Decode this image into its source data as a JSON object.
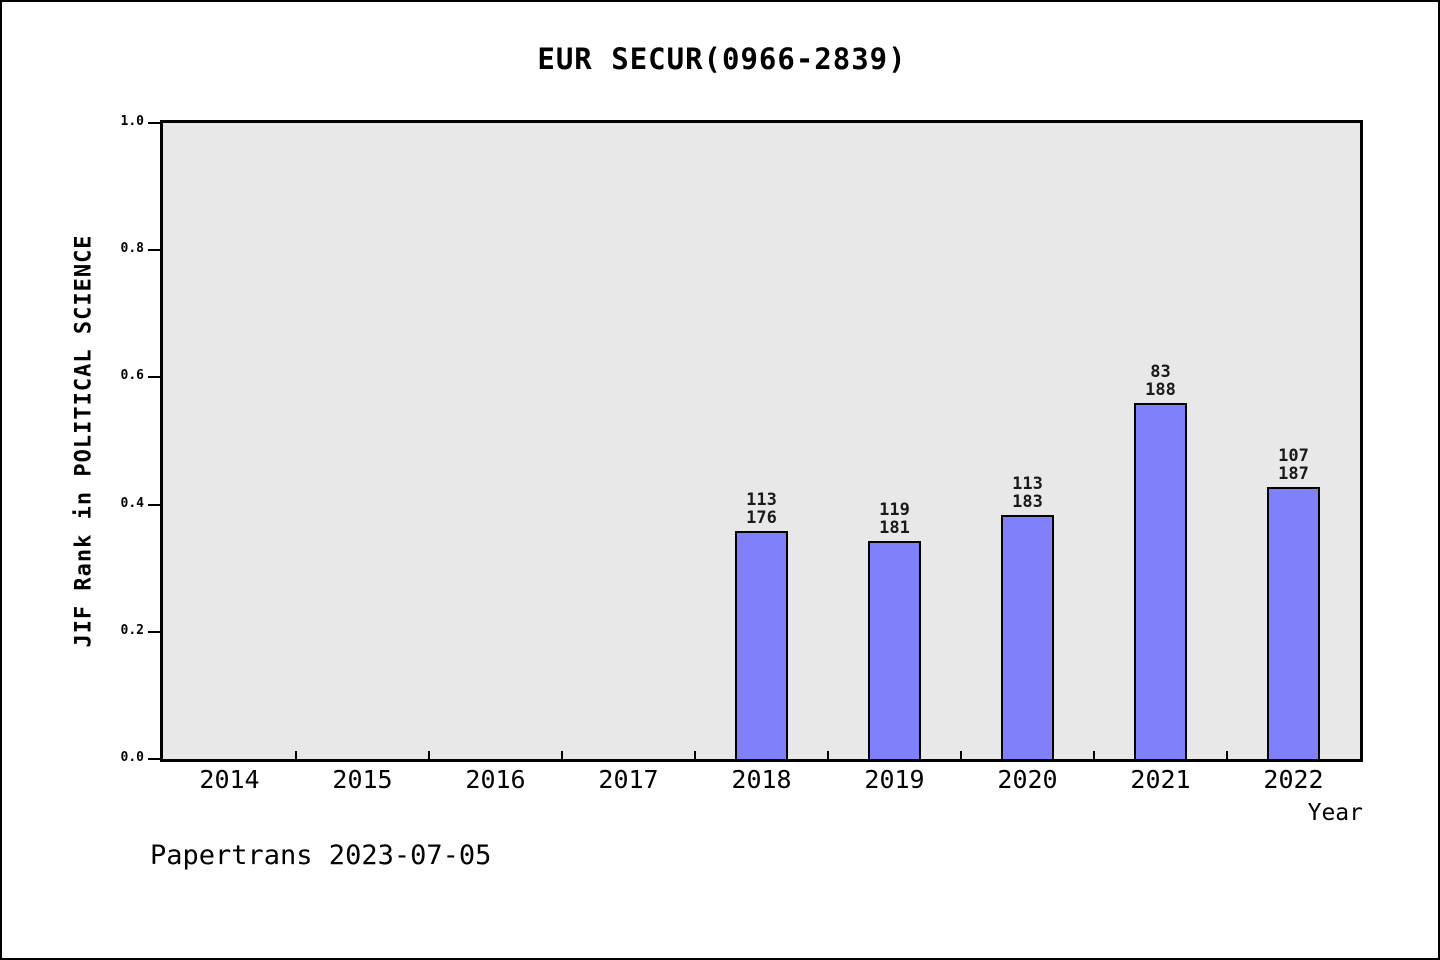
{
  "footer": "Papertrans 2023-07-05",
  "chart_data": {
    "type": "bar",
    "title": "EUR SECUR(0966-2839)",
    "xlabel": "Year",
    "ylabel": "JIF Rank in POLITICAL SCIENCE",
    "categories": [
      "2014",
      "2015",
      "2016",
      "2017",
      "2018",
      "2019",
      "2020",
      "2021",
      "2022"
    ],
    "bars": [
      {
        "category": "2018",
        "rank": 113,
        "total": 176,
        "value": 0.358
      },
      {
        "category": "2019",
        "rank": 119,
        "total": 181,
        "value": 0.343
      },
      {
        "category": "2020",
        "rank": 113,
        "total": 183,
        "value": 0.383
      },
      {
        "category": "2021",
        "rank": 83,
        "total": 188,
        "value": 0.559
      },
      {
        "category": "2022",
        "rank": 107,
        "total": 187,
        "value": 0.428
      }
    ],
    "ylim": [
      0.0,
      1.0
    ],
    "yticks": [
      0.0,
      0.2,
      0.4,
      0.6,
      0.8,
      1.0
    ],
    "grid": false,
    "legend": "none",
    "plot_background": "#e8e8e8",
    "bar_fill": "#8080fa",
    "bar_edge": "#000000"
  }
}
